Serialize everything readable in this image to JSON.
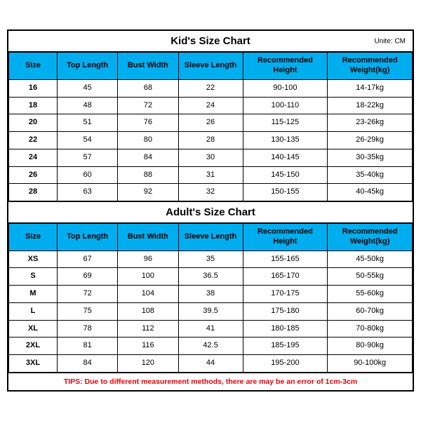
{
  "kid": {
    "title": "Kid's Size Chart",
    "unit": "Unite: CM",
    "columns": [
      "Size",
      "Top Length",
      "Bust Width",
      "Sleeve Length",
      "Recommended Height",
      "Recommended Weight(kg)"
    ],
    "rows": [
      [
        "16",
        "45",
        "68",
        "22",
        "90-100",
        "14-17kg"
      ],
      [
        "18",
        "48",
        "72",
        "24",
        "100-110",
        "18-22kg"
      ],
      [
        "20",
        "51",
        "76",
        "26",
        "115-125",
        "23-26kg"
      ],
      [
        "22",
        "54",
        "80",
        "28",
        "130-135",
        "26-29kg"
      ],
      [
        "24",
        "57",
        "84",
        "30",
        "140-145",
        "30-35kg"
      ],
      [
        "26",
        "60",
        "88",
        "31",
        "145-150",
        "35-40kg"
      ],
      [
        "28",
        "63",
        "92",
        "32",
        "150-155",
        "40-45kg"
      ]
    ]
  },
  "adult": {
    "title": "Adult's Size Chart",
    "columns": [
      "Size",
      "Top Length",
      "Bust Width",
      "Sleeve Length",
      "Recommended Height",
      "Recommended Weight(kg)"
    ],
    "rows": [
      [
        "XS",
        "67",
        "96",
        "35",
        "155-165",
        "45-50kg"
      ],
      [
        "S",
        "69",
        "100",
        "36.5",
        "165-170",
        "50-55kg"
      ],
      [
        "M",
        "72",
        "104",
        "38",
        "170-175",
        "55-60kg"
      ],
      [
        "L",
        "75",
        "108",
        "39.5",
        "175-180",
        "60-70kg"
      ],
      [
        "XL",
        "78",
        "112",
        "41",
        "180-185",
        "70-80kg"
      ],
      [
        "2XL",
        "81",
        "116",
        "42.5",
        "185-195",
        "80-90kg"
      ],
      [
        "3XL",
        "84",
        "120",
        "44",
        "195-200",
        "90-100kg"
      ]
    ]
  },
  "tips": "TIPS: Due to different measurement methods, there are may be an error of 1cm-3cm",
  "colors": {
    "header_bg": "#00aeef",
    "border": "#000000",
    "tips_color": "#e60000",
    "background": "#ffffff"
  }
}
